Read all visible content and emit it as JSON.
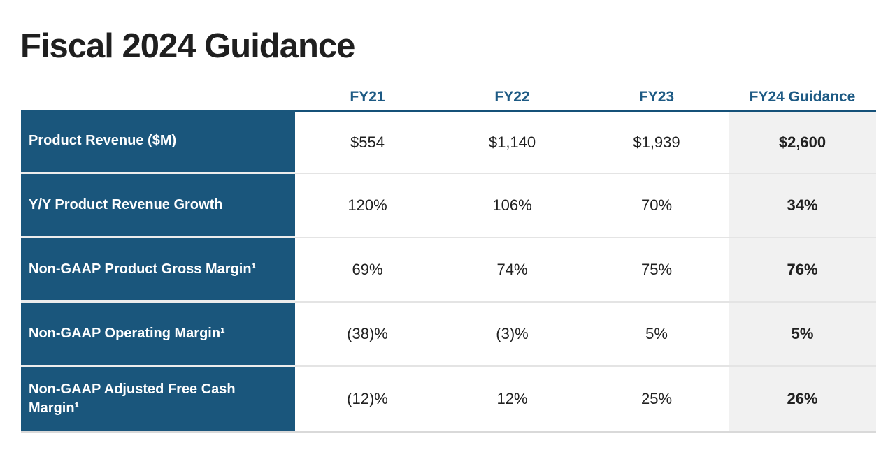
{
  "slide": {
    "title": "Fiscal 2024 Guidance"
  },
  "table": {
    "columns": [
      "FY21",
      "FY22",
      "FY23",
      "FY24 Guidance"
    ],
    "rows": [
      {
        "label": "Product Revenue ($M)",
        "values": [
          "$554",
          "$1,140",
          "$1,939",
          "$2,600"
        ]
      },
      {
        "label": "Y/Y Product Revenue Growth",
        "values": [
          "120%",
          "106%",
          "70%",
          "34%"
        ]
      },
      {
        "label": "Non-GAAP Product Gross Margin¹",
        "values": [
          "69%",
          "74%",
          "75%",
          "76%"
        ]
      },
      {
        "label": "Non-GAAP Operating Margin¹",
        "values": [
          "(38)%",
          "(3)%",
          "5%",
          "5%"
        ]
      },
      {
        "label": "Non-GAAP Adjusted Free Cash Margin¹",
        "values": [
          "(12)%",
          "12%",
          "25%",
          "26%"
        ]
      }
    ]
  },
  "colors": {
    "row_label_background": "#1A567C",
    "header_text": "#1D5A84",
    "header_rule": "#155179",
    "highlight_column_background": "#F1F1F1",
    "value_text": "#212121",
    "title_text": "#1F1F1F"
  },
  "chart_data": {
    "type": "table",
    "title": "Fiscal 2024 Guidance",
    "columns": [
      "FY21",
      "FY22",
      "FY23",
      "FY24 Guidance"
    ],
    "rows": [
      {
        "label": "Product Revenue ($M)",
        "values": [
          "$554",
          "$1,140",
          "$1,939",
          "$2,600"
        ]
      },
      {
        "label": "Y/Y Product Revenue Growth",
        "values": [
          "120%",
          "106%",
          "70%",
          "34%"
        ]
      },
      {
        "label": "Non-GAAP Product Gross Margin¹",
        "values": [
          "69%",
          "74%",
          "75%",
          "76%"
        ]
      },
      {
        "label": "Non-GAAP Operating Margin¹",
        "values": [
          "(38)%",
          "(3)%",
          "5%",
          "5%"
        ]
      },
      {
        "label": "Non-GAAP Adjusted Free Cash Margin¹",
        "values": [
          "(12)%",
          "12%",
          "25%",
          "26%"
        ]
      }
    ],
    "layout_hints": {
      "highlighted_column": "FY24 Guidance",
      "label_column_style": "dark-blue filled, white bold text",
      "highlight_column_style": "light gray filled, bold values"
    }
  }
}
